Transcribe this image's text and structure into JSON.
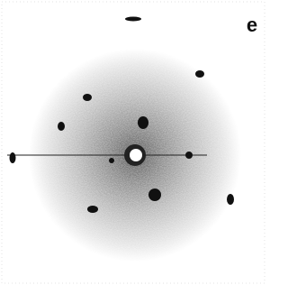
{
  "label": "e"
}
